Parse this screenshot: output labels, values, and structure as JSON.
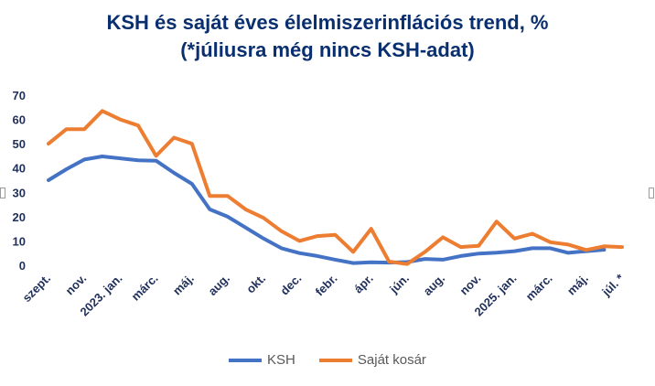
{
  "chart_data": {
    "type": "line",
    "title_line1": "KSH és saját éves élelmiszerinflációs trend, %",
    "title_line2": "(*júliusra még nincs KSH-adat)",
    "ylim": [
      0,
      70
    ],
    "yticks": [
      0,
      10,
      20,
      30,
      40,
      50,
      60,
      70
    ],
    "grid": false,
    "legend_position": "bottom",
    "x_tick_labels": [
      "szept.",
      "nov.",
      "2023. jan.",
      "márc.",
      "máj.",
      "aug.",
      "okt.",
      "dec.",
      "febr.",
      "ápr.",
      "jún.",
      "aug.",
      "nov.",
      "2025. jan.",
      "márc.",
      "máj.",
      "júl. *"
    ],
    "series": [
      {
        "name": "KSH",
        "color": "#4472c4",
        "values": [
          35,
          39.5,
          43.5,
          44.8,
          44,
          43.2,
          43,
          38,
          33.5,
          23,
          20,
          15.5,
          11,
          7,
          5,
          3.8,
          2.3,
          0.9,
          1.2,
          1.1,
          1.3,
          2.6,
          2.3,
          3.8,
          4.8,
          5.2,
          5.8,
          7,
          7,
          5.1,
          5.8,
          6.4,
          null
        ],
        "stroke_width": 4
      },
      {
        "name": "Saját kosár",
        "color": "#ed7d31",
        "values": [
          50,
          56,
          56,
          63.5,
          60,
          57.5,
          45,
          52.5,
          50,
          28.5,
          28.5,
          23,
          19.5,
          14,
          10,
          12,
          12.5,
          5.5,
          15,
          1.5,
          0.5,
          5.5,
          11.5,
          7.5,
          8,
          18,
          11,
          13,
          9.5,
          8.5,
          6.3,
          7.8,
          7.5
        ],
        "stroke_width": 4
      }
    ]
  }
}
